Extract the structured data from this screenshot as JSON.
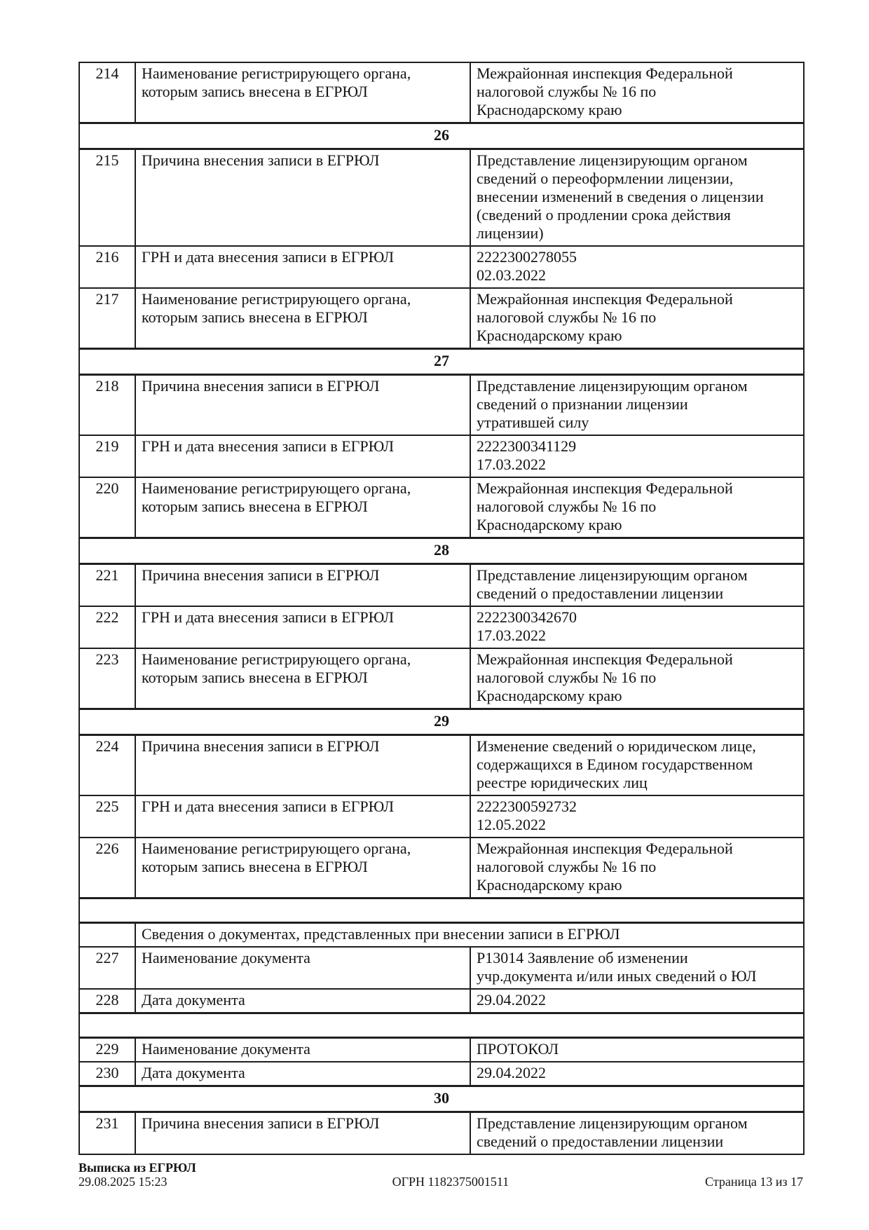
{
  "table": {
    "rows": [
      {
        "type": "field",
        "num": "214",
        "name": "Наименование регистрирующего органа,\nкоторым запись внесена в ЕГРЮЛ",
        "value": "Межрайонная инспекция Федеральной\nналоговой службы № 16 по\nКраснодарскому краю"
      },
      {
        "type": "section",
        "num": "26"
      },
      {
        "type": "field",
        "num": "215",
        "name": "Причина внесения записи в ЕГРЮЛ",
        "value": "Представление лицензирующим органом\nсведений о переоформлении лицензии,\nвнесении изменений в сведения о лицензии\n(сведений о продлении срока действия\nлицензии)"
      },
      {
        "type": "field",
        "num": "216",
        "name": "ГРН и дата внесения записи в ЕГРЮЛ",
        "value": "2222300278055\n02.03.2022"
      },
      {
        "type": "field",
        "num": "217",
        "name": "Наименование регистрирующего органа,\nкоторым запись внесена в ЕГРЮЛ",
        "value": "Межрайонная инспекция Федеральной\nналоговой службы № 16 по\nКраснодарскому краю"
      },
      {
        "type": "section",
        "num": "27"
      },
      {
        "type": "field",
        "num": "218",
        "name": "Причина внесения записи в ЕГРЮЛ",
        "value": "Представление лицензирующим органом\nсведений о признании лицензии\nутратившей силу"
      },
      {
        "type": "field",
        "num": "219",
        "name": "ГРН и дата внесения записи в ЕГРЮЛ",
        "value": "2222300341129\n17.03.2022"
      },
      {
        "type": "field",
        "num": "220",
        "name": "Наименование регистрирующего органа,\nкоторым запись внесена в ЕГРЮЛ",
        "value": "Межрайонная инспекция Федеральной\nналоговой службы № 16 по\nКраснодарскому краю"
      },
      {
        "type": "section",
        "num": "28"
      },
      {
        "type": "field",
        "num": "221",
        "name": "Причина внесения записи в ЕГРЮЛ",
        "value": "Представление лицензирующим органом\nсведений о предоставлении лицензии"
      },
      {
        "type": "field",
        "num": "222",
        "name": "ГРН и дата внесения записи в ЕГРЮЛ",
        "value": "2222300342670\n17.03.2022"
      },
      {
        "type": "field",
        "num": "223",
        "name": "Наименование регистрирующего органа,\nкоторым запись внесена в ЕГРЮЛ",
        "value": "Межрайонная инспекция Федеральной\nналоговой службы № 16 по\nКраснодарскому краю"
      },
      {
        "type": "section",
        "num": "29"
      },
      {
        "type": "field",
        "num": "224",
        "name": "Причина внесения записи в ЕГРЮЛ",
        "value": "Изменение сведений о юридическом лице,\nсодержащихся в Едином государственном\nреестре юридических лиц"
      },
      {
        "type": "field",
        "num": "225",
        "name": "ГРН и дата внесения записи в ЕГРЮЛ",
        "value": "2222300592732\n12.05.2022"
      },
      {
        "type": "field",
        "num": "226",
        "name": "Наименование регистрирующего органа,\nкоторым запись внесена в ЕГРЮЛ",
        "value": "Межрайонная инспекция Федеральной\nналоговой службы № 16 по\nКраснодарскому краю"
      },
      {
        "type": "blank"
      },
      {
        "type": "docs_header",
        "text": "Сведения о документах, представленных при внесении записи в ЕГРЮЛ"
      },
      {
        "type": "field",
        "num": "227",
        "name": "Наименование документа",
        "value": "Р13014 Заявление об изменении\nучр.документа и/или иных сведений о ЮЛ"
      },
      {
        "type": "field",
        "num": "228",
        "name": "Дата документа",
        "value": "29.04.2022"
      },
      {
        "type": "blank"
      },
      {
        "type": "field",
        "num": "229",
        "name": "Наименование документа",
        "value": "ПРОТОКОЛ"
      },
      {
        "type": "field",
        "num": "230",
        "name": "Дата документа",
        "value": "29.04.2022"
      },
      {
        "type": "section",
        "num": "30"
      },
      {
        "type": "field",
        "num": "231",
        "name": "Причина внесения записи в ЕГРЮЛ",
        "value": "Представление лицензирующим органом\nсведений о предоставлении лицензии"
      }
    ]
  },
  "footer": {
    "doc_title": "Выписка из ЕГРЮЛ",
    "datetime": "29.08.2025 15:23",
    "ogrn": "ОГРН 1182375001511",
    "page_label": "Страница 13 из 17"
  }
}
